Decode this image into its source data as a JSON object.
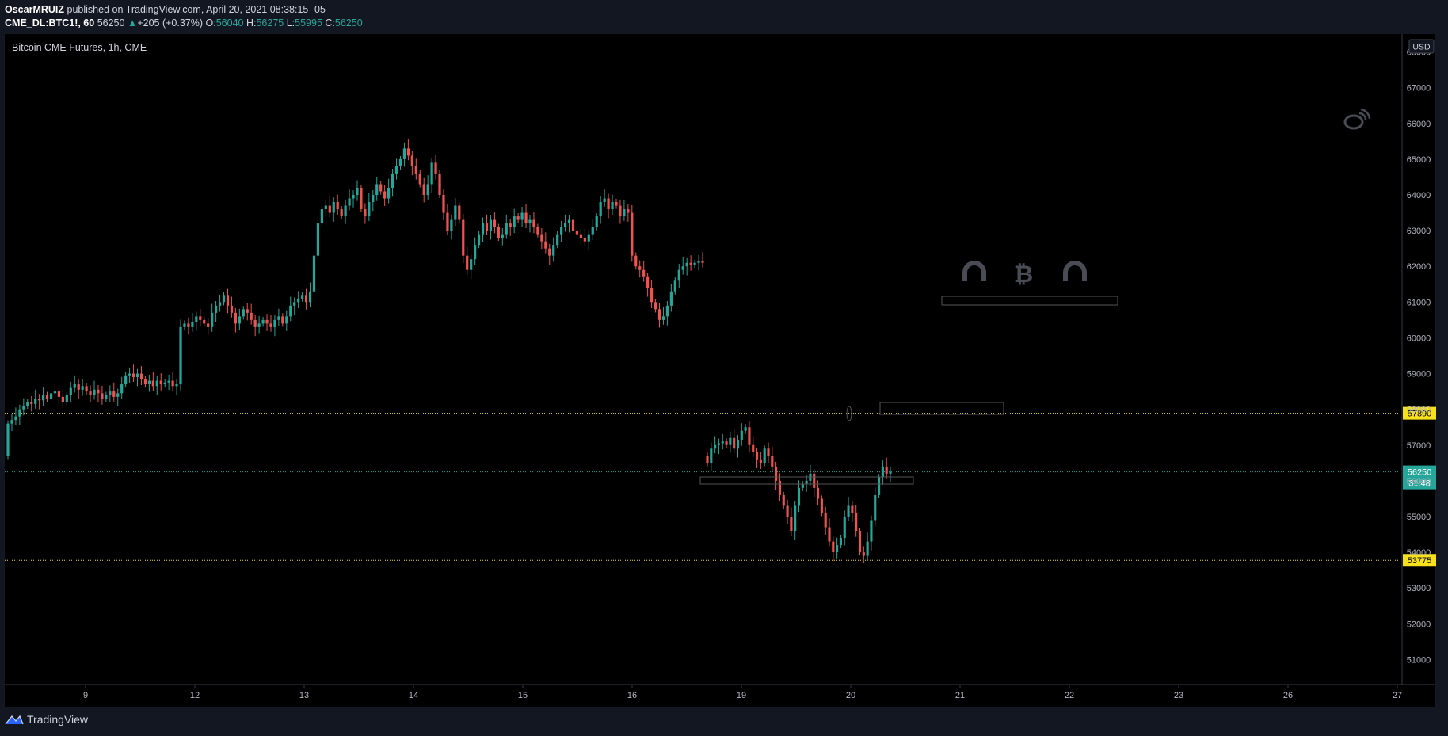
{
  "header": {
    "author": "OscarMRUIZ",
    "published_text": "published on TradingView.com, April 20, 2021 08:38:15 -05",
    "symbol": "CME_DL:BTC1!, 60",
    "last": "56250",
    "change_arrow": "▲",
    "change": "+205 (+0.37%)",
    "o_label": "O:",
    "o": "56040",
    "h_label": "H:",
    "h": "56275",
    "l_label": "L:",
    "l": "55995",
    "c_label": "C:",
    "c": "56250"
  },
  "footer": {
    "brand": "TradingView"
  },
  "colors": {
    "background": "#000000",
    "up": "#26a69a",
    "down": "#ef5350",
    "hline": "#f7e11d",
    "axis_text": "#b2b5be",
    "price_tag_bg": "#26a69a"
  },
  "chart_data": {
    "type": "candlestick",
    "title": "Bitcoin CME Futures, 1h, CME",
    "currency": "USD",
    "xlabel": "",
    "ylabel": "",
    "ylim": [
      50300,
      68500
    ],
    "x_ticks": [
      "9",
      "12",
      "13",
      "14",
      "15",
      "16",
      "19",
      "20",
      "21",
      "22",
      "23",
      "26",
      "27"
    ],
    "y_ticks": [
      51000,
      52000,
      53000,
      54000,
      55000,
      56000,
      57000,
      58000,
      59000,
      60000,
      61000,
      62000,
      63000,
      64000,
      65000,
      66000,
      67000,
      68000
    ],
    "last_price": 56250,
    "countdown": "31:48",
    "hlines": [
      {
        "price": 57890,
        "label": "57890"
      },
      {
        "price": 53775,
        "label": "53775"
      }
    ],
    "segments": [
      {
        "session": "Apr 8-16",
        "start_open": 56700,
        "closes": [
          57600,
          57700,
          57800,
          58000,
          58100,
          58200,
          58150,
          58300,
          58250,
          58400,
          58300,
          58450,
          58500,
          58350,
          58200,
          58400,
          58600,
          58700,
          58550,
          58650,
          58500,
          58400,
          58550,
          58450,
          58300,
          58400,
          58500,
          58350,
          58450,
          58700,
          58950,
          59000,
          58900,
          59000,
          58850,
          58700,
          58800,
          58650,
          58800,
          58700,
          58750,
          58800,
          58650,
          58700,
          60300,
          60400,
          60300,
          60450,
          60600,
          60500,
          60400,
          60300,
          60700,
          60900,
          61000,
          61200,
          60900,
          60700,
          60400,
          60600,
          60800,
          60700,
          60500,
          60300,
          60400,
          60500,
          60400,
          60300,
          60500,
          60600,
          60400,
          60600,
          60900,
          61000,
          61100,
          61200,
          61000,
          61300,
          62300,
          63200,
          63600,
          63700,
          63500,
          63800,
          63600,
          63400,
          63700,
          63900,
          64000,
          64200,
          63600,
          63400,
          63800,
          64000,
          64300,
          64100,
          63900,
          64200,
          64600,
          64800,
          65000,
          65300,
          65100,
          64800,
          64600,
          64300,
          64000,
          64300,
          64900,
          64600,
          64000,
          63500,
          63000,
          63300,
          63700,
          63300,
          62300,
          61900,
          62200,
          62600,
          62900,
          63200,
          63000,
          63300,
          63100,
          62800,
          62900,
          63200,
          63100,
          63400,
          63300,
          63500,
          63200,
          63300,
          63100,
          62900,
          62700,
          62500,
          62300,
          62600,
          62900,
          63100,
          63200,
          63300,
          63000,
          62900,
          62800,
          62700,
          62900,
          63100,
          63400,
          63800,
          63900,
          63600,
          63800,
          63700,
          63400,
          63600,
          63500,
          62300,
          62000,
          61900,
          61700,
          61400,
          61000,
          60800,
          60500,
          60600,
          60900,
          61300,
          61600,
          61900,
          62000,
          62100,
          62050,
          62100,
          62150,
          62100
        ]
      },
      {
        "session": "Apr 18-20",
        "start_open": 56700,
        "closes": [
          56500,
          56900,
          57000,
          57050,
          57100,
          57000,
          57200,
          56900,
          57150,
          57400,
          57500,
          57000,
          56800,
          56600,
          56500,
          56900,
          56700,
          56400,
          56000,
          55600,
          55300,
          55000,
          54600,
          55300,
          55800,
          55900,
          56000,
          56200,
          55800,
          55500,
          55100,
          54700,
          54300,
          54000,
          54200,
          54400,
          55000,
          55300,
          55100,
          54600,
          54000,
          53900,
          54300,
          54900,
          55600,
          56100,
          56400,
          56200,
          56250
        ]
      }
    ],
    "annotations": [
      "magnet-icon",
      "bitcoin-icon",
      "magnet-icon",
      "weibo-icon"
    ]
  }
}
